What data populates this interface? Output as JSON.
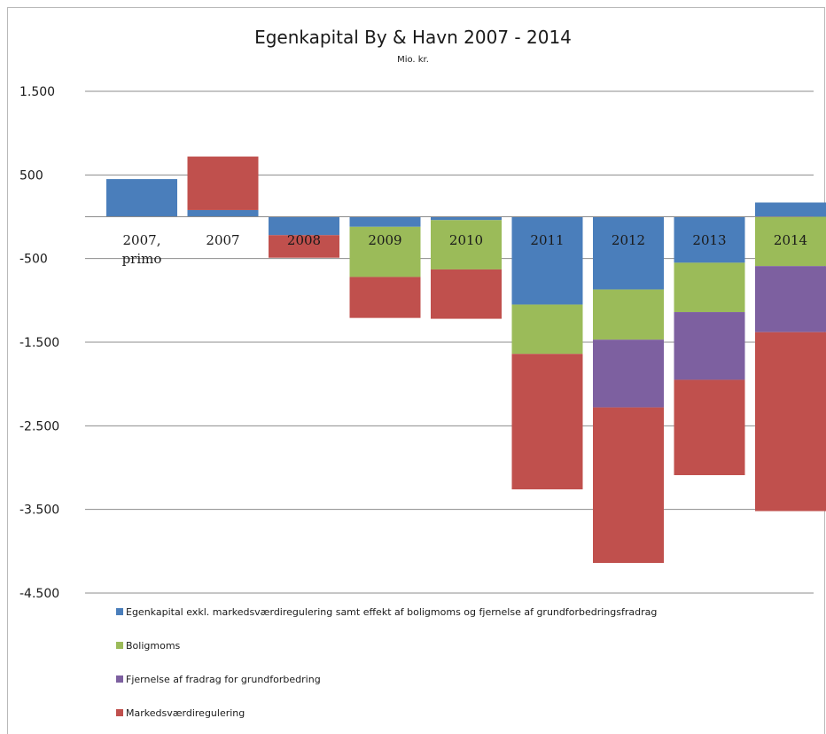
{
  "chart_data": {
    "type": "bar",
    "stacked": true,
    "title": "Egenkapital By & Havn 2007 - 2014",
    "subtitle": "Mio. kr.",
    "categories": [
      [
        "2007,",
        "primo"
      ],
      [
        "2007"
      ],
      [
        "2008"
      ],
      [
        "2009"
      ],
      [
        "2010"
      ],
      [
        "2011"
      ],
      [
        "2012"
      ],
      [
        "2013"
      ],
      [
        "2014"
      ]
    ],
    "ylim": [
      -4500,
      1500
    ],
    "yticks": [
      1500,
      500,
      -500,
      -1500,
      -2500,
      -3500,
      -4500
    ],
    "ytick_labels": [
      "1.500",
      "500",
      "-500",
      "-1.500",
      "-2.500",
      "-3.500",
      "-4.500"
    ],
    "grid": true,
    "legend_position": "bottom",
    "series": [
      {
        "name": "Egenkapital exkl. markedsværdiregulering samt effekt af boligmoms og fjernelse af grundforbedringsfradrag",
        "color": "#4a7ebb",
        "values": [
          450,
          80,
          -220,
          -120,
          -40,
          -1050,
          -870,
          -550,
          170
        ]
      },
      {
        "name": "Boligmoms",
        "color": "#9bbb59",
        "values": [
          0,
          0,
          0,
          -600,
          -590,
          -590,
          -600,
          -590,
          -590
        ]
      },
      {
        "name": "Fjernelse af fradrag for grundforbedring",
        "color": "#7d60a0",
        "values": [
          0,
          0,
          0,
          0,
          0,
          0,
          -810,
          -810,
          -790
        ]
      },
      {
        "name": "Markedsværdiregulering",
        "color": "#c0504d",
        "values": [
          0,
          640,
          -270,
          -490,
          -590,
          -1620,
          -1860,
          -1140,
          -2140
        ]
      }
    ]
  }
}
